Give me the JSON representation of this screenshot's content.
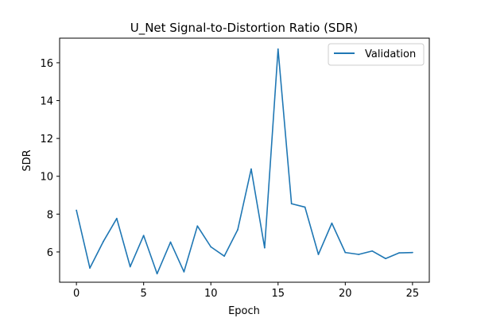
{
  "chart_data": {
    "type": "line",
    "title": "U_Net Signal-to-Distortion Ratio (SDR)",
    "xlabel": "Epoch",
    "ylabel": "SDR",
    "xlim": [
      -1.25,
      26.25
    ],
    "ylim": [
      4.4,
      17.3
    ],
    "xticks": [
      0,
      5,
      10,
      15,
      20,
      25
    ],
    "yticks": [
      6,
      8,
      10,
      12,
      14,
      16
    ],
    "grid": false,
    "legend_position": "upper right",
    "series": [
      {
        "name": "Validation",
        "color": "#1f77b4",
        "x": [
          0,
          1,
          2,
          3,
          4,
          5,
          6,
          7,
          8,
          9,
          10,
          11,
          12,
          13,
          14,
          15,
          16,
          17,
          18,
          19,
          20,
          21,
          22,
          23,
          24,
          25
        ],
        "values": [
          8.2,
          5.15,
          6.55,
          7.77,
          5.22,
          6.87,
          4.85,
          6.52,
          4.95,
          7.37,
          6.27,
          5.78,
          7.18,
          10.38,
          6.22,
          16.72,
          8.55,
          8.37,
          5.87,
          7.52,
          5.97,
          5.87,
          6.05,
          5.65,
          5.95,
          5.97
        ]
      }
    ]
  }
}
